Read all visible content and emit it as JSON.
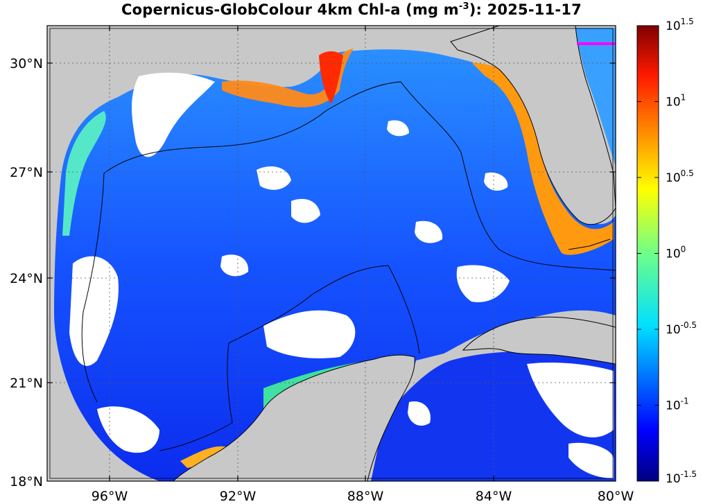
{
  "title": {
    "prefix": "Copernicus-GlobColour 4km Chl-a (mg m",
    "exponent": "-3",
    "suffix": "): 2025-11-17"
  },
  "map": {
    "lat_labels": [
      "30°N",
      "27°N",
      "24°N",
      "21°N",
      "18°N"
    ],
    "lon_labels": [
      "96°W",
      "92°W",
      "88°W",
      "84°W",
      "80°W"
    ],
    "land_color": "#c8c8c8",
    "nodata_color": "#ffffff",
    "marker_color": "#ff00ff"
  },
  "colorbar": {
    "base": "10",
    "ticks": [
      {
        "exp": "1.5",
        "value": 31.6
      },
      {
        "exp": "1",
        "value": 10
      },
      {
        "exp": "0.5",
        "value": 3.16
      },
      {
        "exp": "0",
        "value": 1
      },
      {
        "exp": "-0.5",
        "value": 0.316
      },
      {
        "exp": "-1",
        "value": 0.1
      },
      {
        "exp": "-1.5",
        "value": 0.0316
      }
    ],
    "colormap": "jet",
    "scale": "log"
  }
}
